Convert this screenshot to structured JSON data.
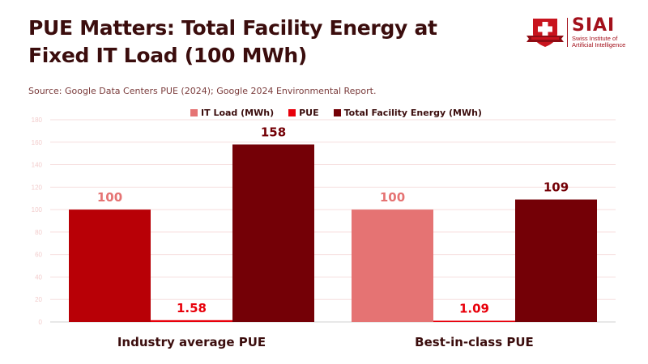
{
  "header": {
    "title_line1": "PUE Matters: Total Facility Energy at",
    "title_line2": "Fixed IT Load (100 MWh)",
    "source": "Source: Google Data Centers PUE (2024); Google 2024 Environmental Report."
  },
  "logo": {
    "name": "SIAI",
    "subtitle_line1": "Swiss Institute of",
    "subtitle_line2": "Artificial Intelligence",
    "icon": "swiss-cross-shield-icon"
  },
  "chart_data": {
    "type": "bar",
    "title": "PUE Matters: Total Facility Energy at Fixed IT Load (100 MWh)",
    "xlabel": "",
    "ylabel": "",
    "ylim": [
      0,
      180
    ],
    "yticks": [
      0,
      20,
      40,
      60,
      80,
      100,
      120,
      140,
      160,
      180
    ],
    "grid": true,
    "legend_position": "top-center",
    "categories": [
      "Industry average PUE",
      "Best-in-class PUE"
    ],
    "series": [
      {
        "name": "IT Load (MWh)",
        "values": [
          100,
          100
        ],
        "labels": [
          "100",
          "100"
        ],
        "color": "#e57373",
        "bar_colors": [
          "#b80006",
          "#e57373"
        ],
        "label_color": "#e57373"
      },
      {
        "name": "PUE",
        "values": [
          1.58,
          1.09
        ],
        "labels": [
          "1.58",
          "1.09"
        ],
        "color": "#e8000b",
        "label_color": "#e8000b"
      },
      {
        "name": "Total Facility Energy (MWh)",
        "values": [
          158,
          109
        ],
        "labels": [
          "158",
          "109"
        ],
        "color": "#740006",
        "label_color": "#740006"
      }
    ]
  },
  "colors": {
    "title": "#3b0d0d",
    "brand": "#a3101b",
    "grid": "#f6dede"
  }
}
